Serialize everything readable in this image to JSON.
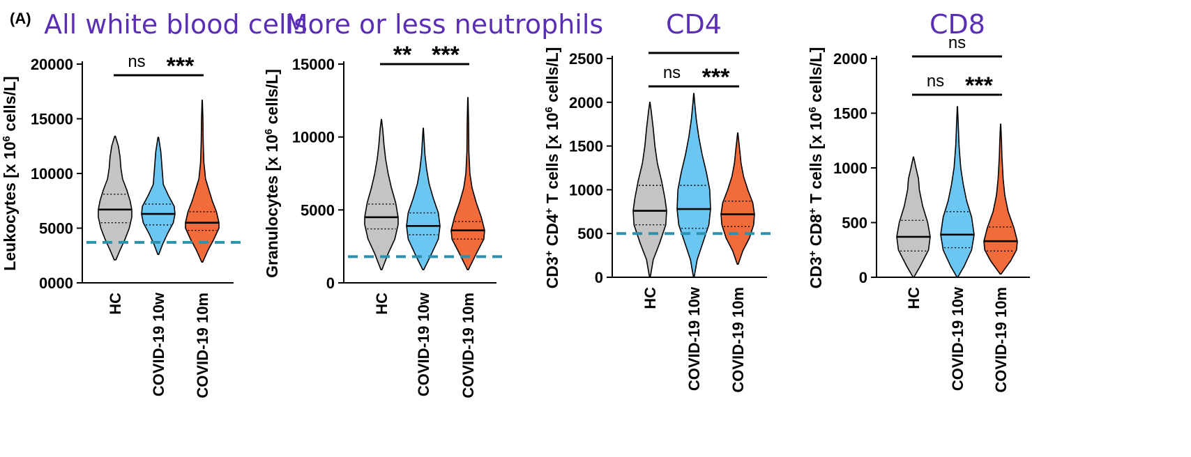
{
  "panel_label": "(A)",
  "chart_data": [
    {
      "type": "violin",
      "title": "All white blood cells",
      "ylabel": "Leukocytes [x 10^6 cells/L]",
      "ylabel_parts": [
        {
          "t": "Leukocytes [x 10",
          "s": "n"
        },
        {
          "t": "6",
          "s": "sup"
        },
        {
          "t": " cells/L]",
          "s": "n"
        }
      ],
      "yticks": [
        0,
        5000,
        10000,
        15000,
        20000
      ],
      "ytick_labels": [
        "0000",
        "5000",
        "10000",
        "15000",
        "20000"
      ],
      "ylim": [
        0,
        20000
      ],
      "reference_line": 3700,
      "categories": [
        "HC",
        "COVID-19 10w",
        "COVID-19 10m"
      ],
      "colors": [
        "#c4c4c4",
        "#6cc6f2",
        "#f26b3a"
      ],
      "series": [
        {
          "category": "HC",
          "min": 2100,
          "q1": 5500,
          "median": 6700,
          "q3": 8100,
          "max": 13400,
          "density": [
            [
              2100,
              0.05
            ],
            [
              3000,
              0.3
            ],
            [
              4000,
              0.6
            ],
            [
              5000,
              0.85
            ],
            [
              6000,
              1.0
            ],
            [
              6700,
              1.0
            ],
            [
              7500,
              0.9
            ],
            [
              8500,
              0.7
            ],
            [
              9500,
              0.45
            ],
            [
              10500,
              0.35
            ],
            [
              11500,
              0.3
            ],
            [
              12500,
              0.2
            ],
            [
              13400,
              0.02
            ]
          ]
        },
        {
          "category": "COVID-19 10w",
          "min": 2600,
          "q1": 5300,
          "median": 6300,
          "q3": 7200,
          "max": 13300,
          "density": [
            [
              2600,
              0.03
            ],
            [
              3500,
              0.25
            ],
            [
              4500,
              0.55
            ],
            [
              5500,
              0.9
            ],
            [
              6300,
              1.0
            ],
            [
              7000,
              0.95
            ],
            [
              8000,
              0.6
            ],
            [
              9000,
              0.3
            ],
            [
              10000,
              0.25
            ],
            [
              11000,
              0.2
            ],
            [
              12000,
              0.15
            ],
            [
              13300,
              0.02
            ]
          ]
        },
        {
          "category": "COVID-19 10m",
          "min": 1900,
          "q1": 4800,
          "median": 5500,
          "q3": 6500,
          "max": 16700,
          "density": [
            [
              1900,
              0.03
            ],
            [
              3000,
              0.35
            ],
            [
              4000,
              0.7
            ],
            [
              5000,
              1.0
            ],
            [
              5500,
              1.0
            ],
            [
              6500,
              0.85
            ],
            [
              7500,
              0.6
            ],
            [
              8500,
              0.4
            ],
            [
              9500,
              0.2
            ],
            [
              11000,
              0.1
            ],
            [
              13000,
              0.06
            ],
            [
              15000,
              0.04
            ],
            [
              16700,
              0.01
            ]
          ]
        }
      ],
      "significance": [
        {
          "from": 0,
          "to": 1,
          "label": "ns",
          "level": 1
        },
        {
          "from": 1,
          "to": 2,
          "label": "***",
          "level": 1
        }
      ]
    },
    {
      "type": "violin",
      "title": "More or less neutrophils",
      "ylabel": "Granulocytes [x 10^6 cells/L]",
      "ylabel_parts": [
        {
          "t": "Granulocytes [x 10",
          "s": "n"
        },
        {
          "t": "6",
          "s": "sup"
        },
        {
          "t": " cells/L]",
          "s": "n"
        }
      ],
      "yticks": [
        0,
        5000,
        10000,
        15000
      ],
      "ytick_labels": [
        "0",
        "5000",
        "10000",
        "15000"
      ],
      "ylim": [
        0,
        15000
      ],
      "reference_line": 1800,
      "categories": [
        "HC",
        "COVID-19 10w",
        "COVID-19 10m"
      ],
      "colors": [
        "#c4c4c4",
        "#6cc6f2",
        "#f26b3a"
      ],
      "series": [
        {
          "category": "HC",
          "min": 900,
          "q1": 3700,
          "median": 4500,
          "q3": 5400,
          "max": 11200,
          "density": [
            [
              900,
              0.03
            ],
            [
              2000,
              0.4
            ],
            [
              3000,
              0.8
            ],
            [
              4000,
              1.0
            ],
            [
              4500,
              1.0
            ],
            [
              5500,
              0.85
            ],
            [
              6500,
              0.6
            ],
            [
              7500,
              0.4
            ],
            [
              8500,
              0.25
            ],
            [
              9500,
              0.15
            ],
            [
              10500,
              0.08
            ],
            [
              11200,
              0.01
            ]
          ]
        },
        {
          "category": "COVID-19 10w",
          "min": 900,
          "q1": 3300,
          "median": 3900,
          "q3": 4800,
          "max": 10600,
          "density": [
            [
              900,
              0.03
            ],
            [
              2000,
              0.5
            ],
            [
              3000,
              0.9
            ],
            [
              3900,
              1.0
            ],
            [
              4800,
              0.9
            ],
            [
              5800,
              0.6
            ],
            [
              6800,
              0.35
            ],
            [
              7800,
              0.2
            ],
            [
              8800,
              0.1
            ],
            [
              9800,
              0.05
            ],
            [
              10600,
              0.01
            ]
          ]
        },
        {
          "category": "COVID-19 10m",
          "min": 900,
          "q1": 3000,
          "median": 3600,
          "q3": 4200,
          "max": 12700,
          "density": [
            [
              900,
              0.03
            ],
            [
              2000,
              0.5
            ],
            [
              3000,
              0.95
            ],
            [
              3600,
              1.0
            ],
            [
              4500,
              0.8
            ],
            [
              5500,
              0.5
            ],
            [
              6500,
              0.25
            ],
            [
              7500,
              0.12
            ],
            [
              9000,
              0.06
            ],
            [
              11000,
              0.04
            ],
            [
              12700,
              0.01
            ]
          ]
        }
      ],
      "significance": [
        {
          "from": 0,
          "to": 1,
          "label": "**",
          "level": 1
        },
        {
          "from": 1,
          "to": 2,
          "label": "***",
          "level": 1
        }
      ]
    },
    {
      "type": "violin",
      "title": "CD4",
      "ylabel": "CD3+ CD4+ T cells [x 10^6 cells/L]",
      "ylabel_parts": [
        {
          "t": "CD3",
          "s": "n"
        },
        {
          "t": "+",
          "s": "sup"
        },
        {
          "t": " CD4",
          "s": "n"
        },
        {
          "t": "+",
          "s": "sup"
        },
        {
          "t": " T cells [x 10",
          "s": "n"
        },
        {
          "t": "6",
          "s": "sup"
        },
        {
          "t": " cells/L]",
          "s": "n"
        }
      ],
      "yticks": [
        0,
        500,
        1000,
        1500,
        2000,
        2500
      ],
      "ytick_labels": [
        "0",
        "500",
        "1000",
        "1500",
        "2000",
        "2500"
      ],
      "ylim": [
        0,
        2500
      ],
      "reference_line": 500,
      "categories": [
        "HC",
        "COVID-19 10w",
        "COVID-19 10m"
      ],
      "colors": [
        "#c4c4c4",
        "#6cc6f2",
        "#f26b3a"
      ],
      "series": [
        {
          "category": "HC",
          "min": 0,
          "q1": 600,
          "median": 760,
          "q3": 1050,
          "max": 2000,
          "density": [
            [
              0,
              0.02
            ],
            [
              200,
              0.2
            ],
            [
              400,
              0.6
            ],
            [
              600,
              0.95
            ],
            [
              760,
              1.0
            ],
            [
              900,
              0.9
            ],
            [
              1100,
              0.7
            ],
            [
              1300,
              0.45
            ],
            [
              1500,
              0.3
            ],
            [
              1700,
              0.2
            ],
            [
              1900,
              0.08
            ],
            [
              2000,
              0.01
            ]
          ]
        },
        {
          "category": "COVID-19 10w",
          "min": 0,
          "q1": 560,
          "median": 780,
          "q3": 1050,
          "max": 2100,
          "density": [
            [
              0,
              0.02
            ],
            [
              200,
              0.2
            ],
            [
              400,
              0.55
            ],
            [
              600,
              0.9
            ],
            [
              780,
              1.0
            ],
            [
              1000,
              0.95
            ],
            [
              1200,
              0.75
            ],
            [
              1400,
              0.5
            ],
            [
              1600,
              0.3
            ],
            [
              1800,
              0.15
            ],
            [
              2000,
              0.05
            ],
            [
              2100,
              0.01
            ]
          ]
        },
        {
          "category": "COVID-19 10m",
          "min": 150,
          "q1": 580,
          "median": 720,
          "q3": 870,
          "max": 1650,
          "density": [
            [
              150,
              0.03
            ],
            [
              300,
              0.3
            ],
            [
              450,
              0.7
            ],
            [
              600,
              0.95
            ],
            [
              720,
              1.0
            ],
            [
              850,
              0.9
            ],
            [
              1000,
              0.6
            ],
            [
              1150,
              0.35
            ],
            [
              1300,
              0.2
            ],
            [
              1450,
              0.12
            ],
            [
              1650,
              0.01
            ]
          ]
        }
      ],
      "significance": [
        {
          "from": 0,
          "to": 1,
          "label": "ns",
          "level": 1
        },
        {
          "from": 1,
          "to": 2,
          "label": "***",
          "level": 1
        },
        {
          "from": 0,
          "to": 2,
          "label": "",
          "level": 2
        }
      ]
    },
    {
      "type": "violin",
      "title": "CD8",
      "ylabel": "CD3+ CD8+ T cells [x 10^6 cells/L]",
      "ylabel_parts": [
        {
          "t": "CD3",
          "s": "n"
        },
        {
          "t": "+",
          "s": "sup"
        },
        {
          "t": " CD8",
          "s": "n"
        },
        {
          "t": "+",
          "s": "sup"
        },
        {
          "t": " T cells [x 10",
          "s": "n"
        },
        {
          "t": "6",
          "s": "sup"
        },
        {
          "t": " cells/L]",
          "s": "n"
        }
      ],
      "yticks": [
        0,
        500,
        1000,
        1500,
        2000
      ],
      "ytick_labels": [
        "0",
        "500",
        "1000",
        "1500",
        "2000"
      ],
      "ylim": [
        0,
        2000
      ],
      "categories": [
        "HC",
        "COVID-19 10w",
        "COVID-19 10m"
      ],
      "colors": [
        "#c4c4c4",
        "#6cc6f2",
        "#f26b3a"
      ],
      "series": [
        {
          "category": "HC",
          "min": 0,
          "q1": 240,
          "median": 370,
          "q3": 520,
          "max": 1100,
          "density": [
            [
              0,
              0.02
            ],
            [
              100,
              0.4
            ],
            [
              250,
              0.9
            ],
            [
              370,
              1.0
            ],
            [
              500,
              0.85
            ],
            [
              650,
              0.55
            ],
            [
              800,
              0.35
            ],
            [
              900,
              0.3
            ],
            [
              1000,
              0.15
            ],
            [
              1100,
              0.01
            ]
          ]
        },
        {
          "category": "COVID-19 10w",
          "min": 0,
          "q1": 270,
          "median": 390,
          "q3": 600,
          "max": 1560,
          "density": [
            [
              0,
              0.02
            ],
            [
              100,
              0.4
            ],
            [
              250,
              0.85
            ],
            [
              390,
              1.0
            ],
            [
              550,
              0.85
            ],
            [
              700,
              0.55
            ],
            [
              850,
              0.35
            ],
            [
              1000,
              0.2
            ],
            [
              1200,
              0.1
            ],
            [
              1400,
              0.05
            ],
            [
              1560,
              0.01
            ]
          ]
        },
        {
          "category": "COVID-19 10m",
          "min": 30,
          "q1": 240,
          "median": 330,
          "q3": 460,
          "max": 1400,
          "density": [
            [
              30,
              0.03
            ],
            [
              150,
              0.6
            ],
            [
              250,
              0.95
            ],
            [
              330,
              1.0
            ],
            [
              450,
              0.8
            ],
            [
              600,
              0.45
            ],
            [
              750,
              0.25
            ],
            [
              900,
              0.15
            ],
            [
              1100,
              0.08
            ],
            [
              1250,
              0.05
            ],
            [
              1400,
              0.01
            ]
          ]
        }
      ],
      "significance": [
        {
          "from": 0,
          "to": 1,
          "label": "ns",
          "level": 1
        },
        {
          "from": 1,
          "to": 2,
          "label": "***",
          "level": 1
        },
        {
          "from": 0,
          "to": 2,
          "label": "ns",
          "level": 2
        }
      ]
    }
  ]
}
